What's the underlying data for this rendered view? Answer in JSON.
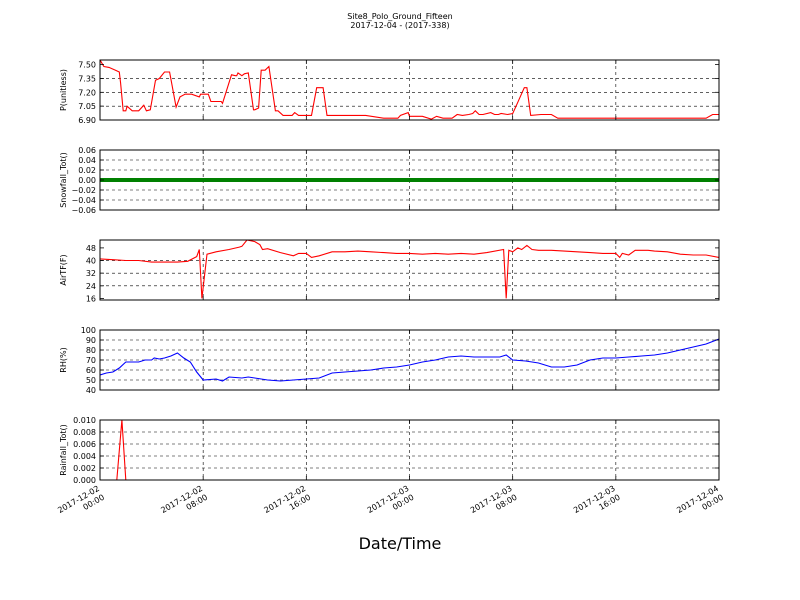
{
  "figure": {
    "title": "Site8_Polo_Ground_Fifteen",
    "subtitle": "2017-12-04 - (2017-338)",
    "xlabel": "Date/Time"
  },
  "chart_data": [
    {
      "type": "line",
      "ylabel": "P(unitless)",
      "color": "#ff0000",
      "ylim": [
        6.9,
        7.55
      ],
      "yticks": [
        6.9,
        7.05,
        7.2,
        7.35,
        7.5
      ],
      "ytick_labels": [
        "6.90",
        "7.05",
        "7.20",
        "7.35",
        "7.50"
      ],
      "x_hours": [
        0.0,
        0.3,
        0.7,
        1.2,
        1.5,
        1.6,
        1.8,
        2.0,
        2.1,
        2.5,
        3.0,
        3.4,
        3.6,
        3.9,
        4.3,
        4.6,
        5.0,
        5.2,
        5.4,
        5.9,
        6.2,
        6.6,
        7.1,
        7.7,
        7.8,
        8.0,
        8.4,
        8.6,
        9.3,
        9.4,
        9.5,
        10.2,
        10.5,
        10.6,
        10.7,
        11.0,
        11.2,
        11.5,
        11.9,
        12.0,
        12.3,
        12.5,
        12.8,
        13.1,
        13.6,
        13.8,
        14.2,
        14.9,
        15.1,
        15.4,
        15.9,
        16.1,
        16.4,
        16.8,
        17.3,
        17.6,
        18.1,
        18.7,
        19.1,
        19.6,
        20.1,
        20.5,
        20.6,
        22.0,
        22.6,
        23.1,
        23.3,
        23.9,
        24.0,
        25.0,
        25.7,
        26.1,
        26.6,
        27.0,
        27.3,
        27.7,
        28.1,
        28.6,
        28.9,
        29.1,
        29.4,
        29.7,
        30.3,
        30.6,
        30.9,
        31.1,
        31.6,
        32.0,
        32.3,
        32.9,
        33.1,
        33.4,
        34.2,
        34.4,
        35.0,
        35.5,
        36.0,
        36.5,
        37.0,
        38.0,
        39.0,
        40.0,
        41.0,
        42.0,
        43.0,
        44.0,
        45.0,
        46.0,
        47.0,
        47.5,
        48.0
      ],
      "y": [
        7.55,
        7.48,
        7.47,
        7.44,
        7.42,
        7.3,
        7.0,
        7.0,
        7.05,
        7.0,
        7.0,
        7.06,
        7.0,
        7.01,
        7.33,
        7.35,
        7.42,
        7.42,
        7.42,
        7.04,
        7.15,
        7.18,
        7.18,
        7.15,
        7.18,
        7.18,
        7.18,
        7.1,
        7.1,
        7.1,
        7.08,
        7.39,
        7.38,
        7.38,
        7.41,
        7.38,
        7.4,
        7.41,
        7.01,
        7.01,
        7.03,
        7.44,
        7.44,
        7.48,
        7.0,
        7.0,
        6.95,
        6.95,
        6.98,
        6.95,
        6.95,
        6.95,
        6.95,
        7.25,
        7.25,
        6.95,
        6.95,
        6.95,
        6.95,
        6.95,
        6.95,
        6.95,
        6.95,
        6.92,
        6.92,
        6.92,
        6.95,
        6.98,
        6.94,
        6.94,
        6.91,
        6.94,
        6.92,
        6.92,
        6.92,
        6.96,
        6.95,
        6.96,
        6.97,
        7.0,
        6.96,
        6.96,
        6.98,
        6.96,
        6.96,
        6.97,
        6.96,
        6.97,
        7.06,
        7.25,
        7.25,
        6.95,
        6.96,
        6.96,
        6.96,
        6.92,
        6.92,
        6.92,
        6.92,
        6.92,
        6.92,
        6.92,
        6.92,
        6.92,
        6.92,
        6.92,
        6.92,
        6.92,
        6.92,
        6.96,
        6.96
      ]
    },
    {
      "type": "line",
      "ylabel": "Snowfall_Tot()",
      "color": "#008000",
      "marker": "dot",
      "ylim": [
        -0.06,
        0.06
      ],
      "yticks": [
        -0.06,
        -0.04,
        -0.02,
        0.0,
        0.02,
        0.04,
        0.06
      ],
      "ytick_labels": [
        "−0.06",
        "−0.04",
        "−0.02",
        "0.00",
        "0.02",
        "0.04",
        "0.06"
      ],
      "x_hours": [
        0.0,
        48.0
      ],
      "y": [
        0.0,
        0.0
      ]
    },
    {
      "type": "line",
      "ylabel": "AirTF(F)",
      "color": "#ff0000",
      "ylim": [
        15,
        53
      ],
      "yticks": [
        16,
        24,
        32,
        40,
        48
      ],
      "ytick_labels": [
        "16",
        "24",
        "32",
        "40",
        "48"
      ],
      "x_hours": [
        0.0,
        1.0,
        2.0,
        3.0,
        4.0,
        5.0,
        6.0,
        6.8,
        7.5,
        7.7,
        7.9,
        8.3,
        9.0,
        10.0,
        10.8,
        11.0,
        11.4,
        12.0,
        12.4,
        12.6,
        13.0,
        14.0,
        15.0,
        15.4,
        16.0,
        16.4,
        17.0,
        18.0,
        19.0,
        20.0,
        21.0,
        22.0,
        23.0,
        24.0,
        25.0,
        26.0,
        27.0,
        28.0,
        29.0,
        30.0,
        31.3,
        31.5,
        31.7,
        32.0,
        32.4,
        32.7,
        33.1,
        33.5,
        34.0,
        35.0,
        36.0,
        37.0,
        38.0,
        39.0,
        40.0,
        40.3,
        40.5,
        41.0,
        41.5,
        42.0,
        42.5,
        43.0,
        44.0,
        45.0,
        46.0,
        47.0,
        48.0
      ],
      "y": [
        41.0,
        40.5,
        40.0,
        40.0,
        39.0,
        39.0,
        39.0,
        39.5,
        42.5,
        47.0,
        16.0,
        44.0,
        45.5,
        47.0,
        48.5,
        49.0,
        53.0,
        52.0,
        50.0,
        47.0,
        47.5,
        45.0,
        43.0,
        44.5,
        44.5,
        42.0,
        43.0,
        45.5,
        45.5,
        46.0,
        45.5,
        45.0,
        44.5,
        44.5,
        44.0,
        44.5,
        44.0,
        44.5,
        44.0,
        45.0,
        47.0,
        16.0,
        46.5,
        45.5,
        48.0,
        47.0,
        49.5,
        47.0,
        46.5,
        46.5,
        46.0,
        45.5,
        45.0,
        44.5,
        44.5,
        42.0,
        44.5,
        43.5,
        46.5,
        46.5,
        46.5,
        46.0,
        45.5,
        44.0,
        43.5,
        43.5,
        42.0
      ]
    },
    {
      "type": "line",
      "ylabel": "RH(%)",
      "color": "#0000ff",
      "ylim": [
        40,
        100
      ],
      "yticks": [
        40,
        50,
        60,
        70,
        80,
        90,
        100
      ],
      "ytick_labels": [
        "40",
        "50",
        "60",
        "70",
        "80",
        "90",
        "100"
      ],
      "x_hours": [
        0.0,
        0.5,
        1.0,
        1.5,
        2.0,
        2.5,
        3.0,
        3.5,
        4.0,
        4.2,
        4.6,
        5.0,
        5.5,
        6.0,
        6.5,
        7.0,
        7.5,
        8.0,
        9.0,
        9.5,
        10.0,
        11.0,
        11.5,
        12.0,
        12.5,
        13.0,
        14.0,
        15.0,
        16.0,
        17.0,
        18.0,
        19.0,
        20.0,
        21.0,
        22.0,
        23.0,
        24.0,
        25.0,
        26.0,
        27.0,
        28.0,
        29.0,
        30.0,
        31.0,
        31.5,
        32.0,
        33.0,
        34.0,
        35.0,
        36.0,
        37.0,
        38.0,
        39.0,
        40.0,
        41.0,
        42.0,
        43.0,
        44.0,
        45.0,
        46.0,
        47.0,
        48.0
      ],
      "y": [
        55.0,
        57.0,
        58.0,
        62.0,
        68.0,
        68.0,
        68.0,
        70.0,
        70.0,
        72.0,
        71.0,
        72.0,
        74.0,
        77.0,
        72.0,
        68.0,
        58.0,
        50.0,
        51.0,
        49.0,
        53.0,
        52.0,
        53.0,
        52.0,
        51.0,
        50.0,
        49.0,
        50.0,
        51.0,
        52.0,
        57.0,
        58.0,
        59.0,
        60.0,
        62.0,
        63.0,
        65.0,
        68.0,
        70.0,
        73.0,
        74.0,
        73.0,
        73.0,
        73.0,
        75.0,
        70.0,
        69.0,
        67.0,
        63.0,
        63.0,
        65.0,
        70.0,
        72.0,
        72.0,
        73.0,
        74.0,
        75.0,
        77.0,
        80.0,
        83.0,
        86.0,
        91.0
      ]
    },
    {
      "type": "line",
      "ylabel": "Rainfall_Tot()",
      "color": "#ff0000",
      "ylim": [
        0.0,
        0.01
      ],
      "yticks": [
        0.0,
        0.002,
        0.004,
        0.006,
        0.008,
        0.01
      ],
      "ytick_labels": [
        "0.000",
        "0.002",
        "0.004",
        "0.006",
        "0.008",
        "0.010"
      ],
      "x_hours": [
        0.0,
        1.3,
        1.7,
        2.0,
        48.0
      ],
      "y": [
        0.0,
        0.0,
        0.01,
        0.0,
        0.0
      ]
    }
  ],
  "xaxis": {
    "range_hours": [
      0,
      48
    ],
    "ticks_hours": [
      0,
      8,
      16,
      24,
      32,
      40,
      48
    ],
    "tick_labels": [
      [
        "2017-12-02",
        "00:00"
      ],
      [
        "2017-12-02",
        "08:00"
      ],
      [
        "2017-12-02",
        "16:00"
      ],
      [
        "2017-12-03",
        "00:00"
      ],
      [
        "2017-12-03",
        "08:00"
      ],
      [
        "2017-12-03",
        "16:00"
      ],
      [
        "2017-12-04",
        "00:00"
      ]
    ]
  }
}
